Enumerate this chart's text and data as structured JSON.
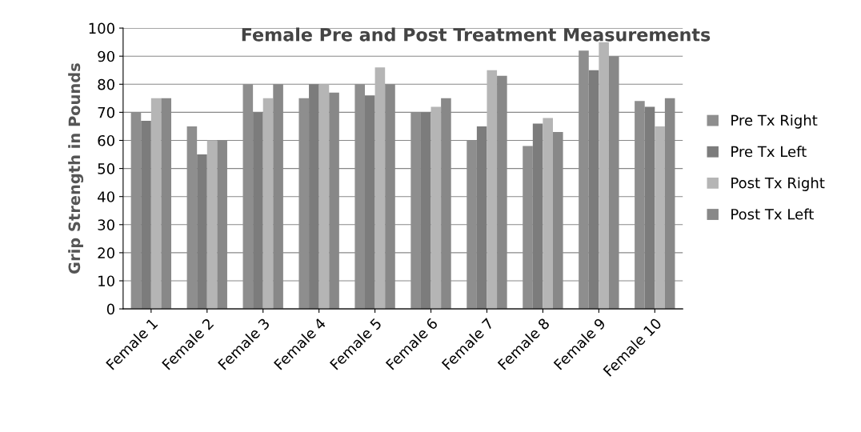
{
  "chart_data": {
    "type": "bar",
    "title": "Female Pre and Post Treatment Measurements",
    "ylabel": "Grip Strength in Pounds",
    "categories": [
      "Female 1",
      "Female 2",
      "Female 3",
      "Female 4",
      "Female 5",
      "Female 6",
      "Female 7",
      "Female 8",
      "Female 9",
      "Female 10"
    ],
    "series": [
      {
        "name": "Pre Tx Right",
        "color": "#8e8e8e",
        "values": [
          70,
          65,
          80,
          75,
          80,
          70,
          60,
          58,
          92,
          74
        ]
      },
      {
        "name": "Pre Tx Left",
        "color": "#7c7c7c",
        "values": [
          67,
          55,
          70,
          80,
          76,
          70,
          65,
          66,
          85,
          72
        ]
      },
      {
        "name": "Post Tx Right",
        "color": "#b5b5b5",
        "values": [
          75,
          60,
          75,
          80,
          86,
          72,
          85,
          68,
          95,
          65
        ]
      },
      {
        "name": "Post Tx Left",
        "color": "#888888",
        "values": [
          75,
          60,
          80,
          77,
          80,
          75,
          83,
          63,
          90,
          75
        ]
      }
    ],
    "ylim": [
      0,
      100
    ],
    "yticks": [
      0,
      10,
      20,
      30,
      40,
      50,
      60,
      70,
      80,
      90,
      100
    ],
    "grid": "y",
    "legend": "right"
  }
}
